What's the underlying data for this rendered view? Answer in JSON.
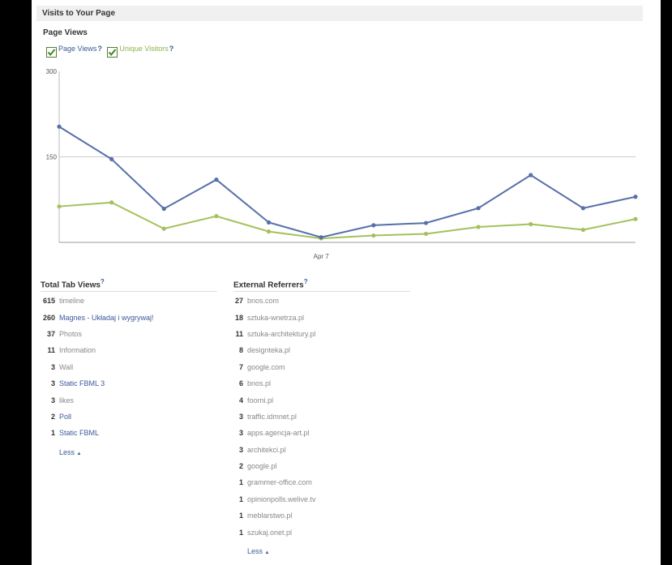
{
  "header": {
    "title": "Visits to Your Page"
  },
  "chart_section": {
    "title": "Page Views",
    "legend": [
      {
        "label": "Page Views",
        "help": "?",
        "color": "#3b5998"
      },
      {
        "label": "Unique Visitors",
        "help": "?",
        "color": "#a4c15b"
      }
    ]
  },
  "chart_data": {
    "type": "line",
    "ylim": [
      0,
      300
    ],
    "yticks": [
      "300",
      "150"
    ],
    "x_tick_label": "Apr 7",
    "series": [
      {
        "name": "Page Views",
        "color": "#5670a9",
        "values": [
          203,
          146,
          59,
          110,
          35,
          9,
          30,
          34,
          60,
          118,
          60,
          80
        ]
      },
      {
        "name": "Unique Visitors",
        "color": "#a4c15b",
        "values": [
          63,
          70,
          24,
          46,
          19,
          7,
          12,
          15,
          27,
          32,
          22,
          41
        ]
      }
    ]
  },
  "tab_views": {
    "title": "Total Tab Views",
    "help": "?",
    "items": [
      {
        "count": "615",
        "label": "timeline",
        "link": false
      },
      {
        "count": "260",
        "label": "Magnes - Układaj i wygrywaj!",
        "link": true
      },
      {
        "count": "37",
        "label": "Photos",
        "link": false
      },
      {
        "count": "11",
        "label": "Information",
        "link": false
      },
      {
        "count": "3",
        "label": "Wall",
        "link": false
      },
      {
        "count": "3",
        "label": "Static FBML 3",
        "link": true
      },
      {
        "count": "3",
        "label": "likes",
        "link": false
      },
      {
        "count": "2",
        "label": "Poll",
        "link": true
      },
      {
        "count": "1",
        "label": "Static FBML",
        "link": true
      }
    ],
    "less": "Less"
  },
  "referrers": {
    "title": "External Referrers",
    "help": "?",
    "items": [
      {
        "count": "27",
        "label": "bnos.com"
      },
      {
        "count": "18",
        "label": "sztuka-wnetrza.pl"
      },
      {
        "count": "11",
        "label": "sztuka-architektury.pl"
      },
      {
        "count": "8",
        "label": "designteka.pl"
      },
      {
        "count": "7",
        "label": "google.com"
      },
      {
        "count": "6",
        "label": "bnos.pl"
      },
      {
        "count": "4",
        "label": "foorni.pl"
      },
      {
        "count": "3",
        "label": "traffic.idmnet.pl"
      },
      {
        "count": "3",
        "label": "apps.agencja-art.pl"
      },
      {
        "count": "3",
        "label": "architekci.pl"
      },
      {
        "count": "2",
        "label": "google.pl"
      },
      {
        "count": "1",
        "label": "grammer-office.com"
      },
      {
        "count": "1",
        "label": "opinionpolls.welive.tv"
      },
      {
        "count": "1",
        "label": "meblarstwo.pl"
      },
      {
        "count": "1",
        "label": "szukaj.onet.pl"
      }
    ],
    "less": "Less"
  }
}
